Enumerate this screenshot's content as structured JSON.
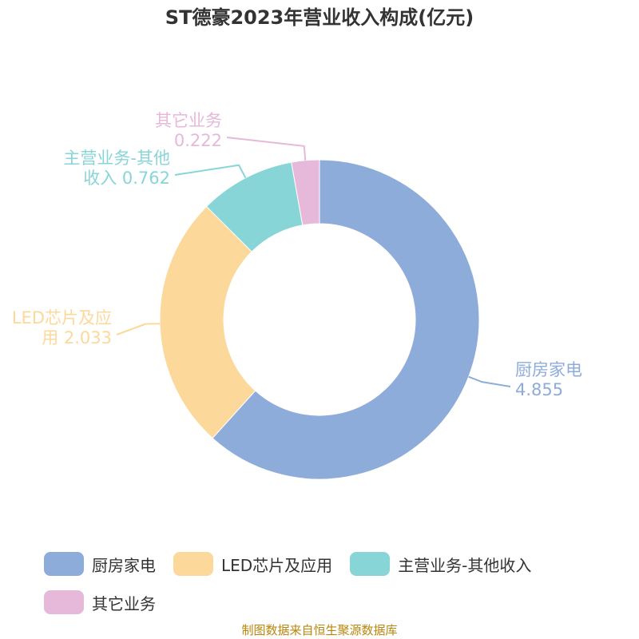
{
  "chart_data": {
    "type": "pie",
    "title": "ST德豪2023年营业收入构成(亿元)",
    "donut": true,
    "slices": [
      {
        "name": "厨房家电",
        "value": 4.855,
        "color": "#8eacda",
        "label_lines": [
          "厨房家电",
          "4.855"
        ]
      },
      {
        "name": "LED芯片及应用",
        "value": 2.033,
        "color": "#fdd89b",
        "label_lines": [
          "LED芯片及应",
          "用 2.033"
        ]
      },
      {
        "name": "主营业务-其他收入",
        "value": 0.762,
        "color": "#88d5d8",
        "label_lines": [
          "主营业务-其他",
          "收入 0.762"
        ]
      },
      {
        "name": "其它业务",
        "value": 0.222,
        "color": "#e6b8d9",
        "label_lines": [
          "其它业务",
          "0.222"
        ]
      }
    ],
    "legend_position": "bottom"
  },
  "source": "制图数据来自恒生聚源数据库"
}
